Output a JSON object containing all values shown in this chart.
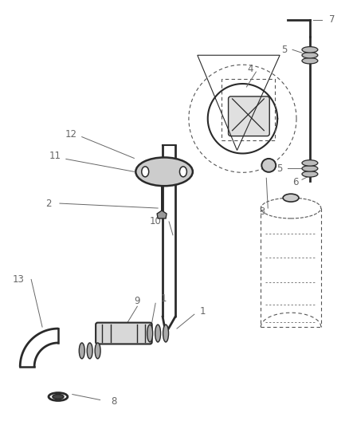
{
  "bg_color": "#ffffff",
  "line_color": "#2a2a2a",
  "label_color": "#666666",
  "dashed_color": "#555555",
  "figsize": [
    4.38,
    5.33
  ],
  "dpi": 100
}
